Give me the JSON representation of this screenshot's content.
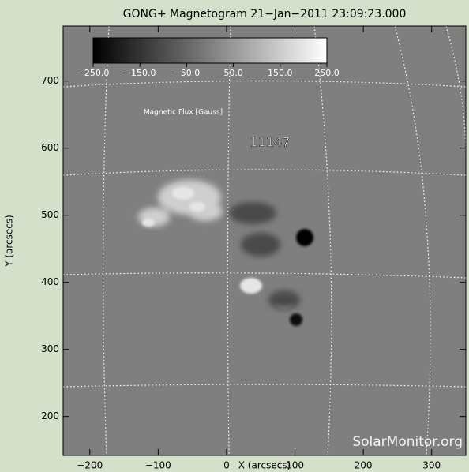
{
  "chart_data": {
    "type": "image",
    "title": "GONG+ Magnetogram 21−Jan−2011 23:09:23.000",
    "x_label": "X (arcsecs)",
    "y_label": "Y (arcsecs)",
    "xlim": [
      -239,
      350
    ],
    "ylim": [
      142,
      782
    ],
    "xticks": [
      {
        "value": -200,
        "label": "−200"
      },
      {
        "value": -100,
        "label": "−100"
      },
      0,
      100,
      200,
      300
    ],
    "yticks": [
      200,
      300,
      400,
      500,
      600,
      700
    ],
    "colorbar": {
      "label": "Magnetic Flux [Gauss]",
      "lim": [
        -250,
        250
      ],
      "colors": [
        "#000000",
        "#ffffff"
      ],
      "ticks": [
        {
          "value": -250,
          "label": "−250.0"
        },
        {
          "value": -150,
          "label": "−150.0"
        },
        {
          "value": -50,
          "label": "−50.0"
        },
        {
          "value": 50,
          "label": "50.0"
        },
        {
          "value": 150,
          "label": "150.0"
        },
        {
          "value": 250,
          "label": "250.0"
        }
      ]
    },
    "annotations": [
      "11147"
    ],
    "watermark": "SolarMonitor.org"
  }
}
